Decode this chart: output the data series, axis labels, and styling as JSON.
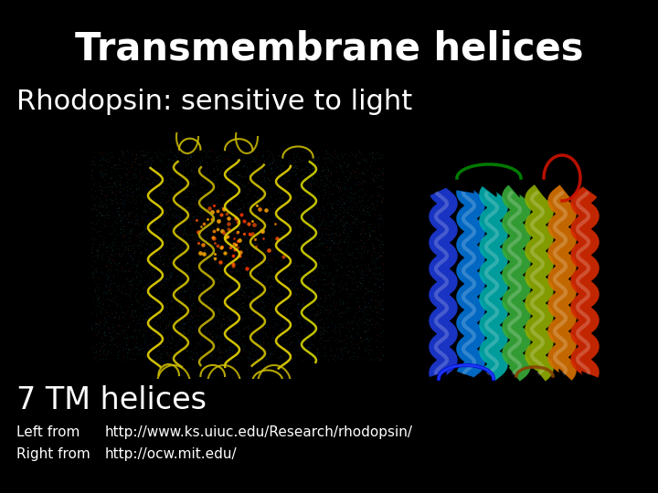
{
  "background_color": "#000000",
  "title": "Transmembrane helices",
  "title_fontsize": 30,
  "title_color": "#ffffff",
  "subtitle": "Rhodopsin: sensitive to light",
  "subtitle_fontsize": 22,
  "subtitle_color": "#ffffff",
  "label_7tm": "7 TM helices",
  "label_7tm_fontsize": 24,
  "label_7tm_color": "#ffffff",
  "left_label": "Left from",
  "right_label": "Right from",
  "left_url": "http://www.ks.uiuc.edu/Research/rhodopsin/",
  "right_url": "http://ocw.mit.edu/",
  "footer_fontsize": 11,
  "footer_color": "#ffffff"
}
